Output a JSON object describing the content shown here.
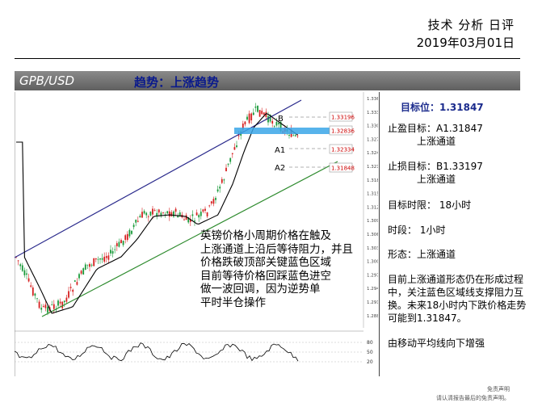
{
  "header": {
    "title": "技术 分析 日评",
    "date": "2019年03月01日"
  },
  "band": {
    "pair": "GPB/USD",
    "trend": "趋势：上涨趋势"
  },
  "chart": {
    "markers": {
      "b": "B",
      "a1": "A1",
      "a2": "A2"
    },
    "price_boxes": [
      {
        "label": "1.33196",
        "level": 1.33196,
        "tag": "B"
      },
      {
        "label": "1.32836",
        "level": 1.32836,
        "tag": "zone"
      },
      {
        "label": "1.32334",
        "level": 1.32334,
        "tag": "A1"
      },
      {
        "label": "1.31848",
        "level": 1.31848,
        "tag": "A2"
      }
    ],
    "axis_labels": [
      "1.3360",
      "1.3330",
      "1.3300",
      "1.3270",
      "1.3240",
      "1.3210",
      "1.3180",
      "1.3150",
      "1.3120",
      "1.3090",
      "1.3060",
      "1.3030",
      "1.3000",
      "1.2970",
      "1.2940",
      "1.2910",
      "1.2880"
    ],
    "osc_labels": [
      "80",
      "50",
      "20"
    ],
    "note": [
      "英镑价格小周期价格在触及",
      "上涨通道上沿后等待阻力，并且",
      "价格跌破顶部关键蓝色区域",
      "目前等待价格回踩蓝色进空",
      "做一波回调，因为逆势单",
      "平时半仓操作"
    ]
  },
  "panel": {
    "target": "目标位：1.31847",
    "tp_label": "止盈目标：A1.31847",
    "tp_sub": "上涨通道",
    "sl_label": "止损目标：B1.33197",
    "sl_sub": "上涨通道",
    "time_target": "目标时限：  18小时",
    "timeframe": "时段：  1小时",
    "pattern": "形态：上涨通道",
    "description": "目前上涨通道形态仍在形成过程中，关注蓝色区域线支撑阻力互换。未来18小时内下跌价格走势可能到1.31847。",
    "ma_note": "由移动平均线向下增强"
  },
  "footer": {
    "disclaimer_title": "免责声明",
    "disclaimer_text": "请认清报告最后的免责声明。"
  },
  "colors": {
    "up": "#1a9a3a",
    "down": "#d62020",
    "channel_top": "#2a2a8c",
    "channel_bottom": "#2e8b2e",
    "zone": "#3aa6e8"
  }
}
